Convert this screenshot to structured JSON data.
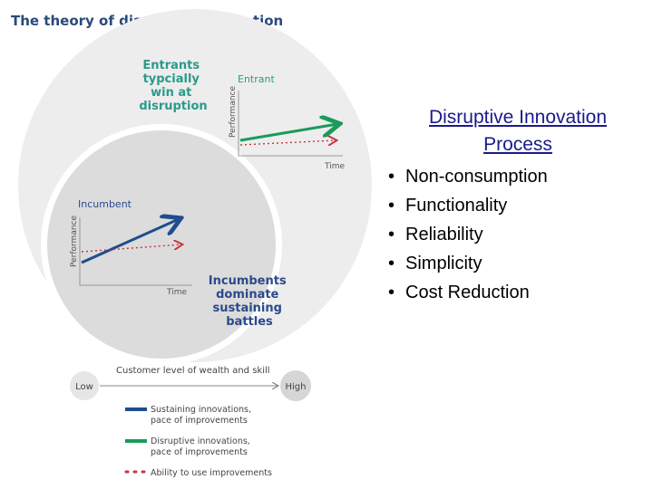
{
  "figure": {
    "title": "The theory of disruptive innovation",
    "entrant_label": [
      "Entrants",
      "typcially",
      "win at",
      "disruption"
    ],
    "entrant_chart": {
      "title": "Entrant",
      "y_label": "Performance",
      "x_label": "Time"
    },
    "incumbent_chart": {
      "title": "Incumbent",
      "y_label": "Performance",
      "x_label": "Time"
    },
    "incumbent_label": [
      "Incumbents",
      "dominate",
      "sustaining",
      "battles"
    ],
    "scale": {
      "title": "Customer level of wealth and skill",
      "low": "Low",
      "high": "High"
    },
    "legend": [
      [
        "Sustaining innovations,",
        "pace of improvements"
      ],
      [
        "Disruptive innovations,",
        "pace of improvements"
      ],
      [
        "Ability to use improvements"
      ]
    ]
  },
  "panel": {
    "title": [
      "Disruptive Innovation",
      "Process"
    ],
    "bullets": [
      "Non-consumption",
      "Functionality",
      "Reliability",
      "Simplicity",
      "Cost Reduction"
    ]
  }
}
